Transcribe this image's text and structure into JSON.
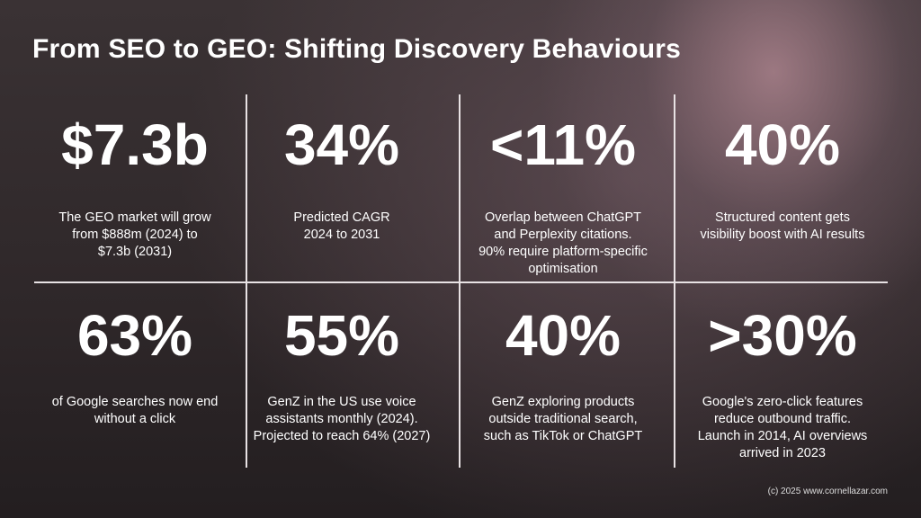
{
  "title": "From SEO to GEO: Shifting Discovery Behaviours",
  "stats": [
    {
      "value": "$7.3b",
      "caption": [
        "The GEO market will grow",
        "from $888m (2024) to",
        "$7.3b (2031)"
      ]
    },
    {
      "value": "34%",
      "caption": [
        "Predicted CAGR",
        "2024 to 2031"
      ]
    },
    {
      "value": "<11%",
      "caption": [
        "Overlap between ChatGPT",
        "and Perplexity citations.",
        "90% require platform-specific",
        "optimisation"
      ]
    },
    {
      "value": "40%",
      "caption": [
        "Structured content gets",
        "visibility boost with AI results"
      ]
    },
    {
      "value": "63%",
      "caption": [
        "of Google searches now end",
        "without a click"
      ]
    },
    {
      "value": "55%",
      "caption": [
        "GenZ in the US use voice",
        "assistants monthly (2024).",
        "Projected to reach 64% (2027)"
      ]
    },
    {
      "value": "40%",
      "caption": [
        "GenZ exploring products",
        "outside traditional search,",
        "such as TikTok or ChatGPT"
      ]
    },
    {
      "value": ">30%",
      "caption": [
        "Google's zero-click features",
        "reduce outbound traffic.",
        "Launch in 2014, AI overviews",
        "arrived in 2023"
      ]
    }
  ],
  "copyright": "(c) 2025 www.cornellazar.com"
}
